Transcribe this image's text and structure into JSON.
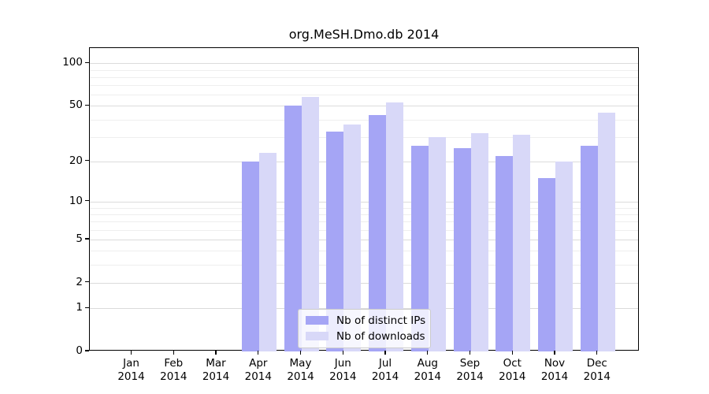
{
  "chart_data": {
    "type": "bar",
    "title": "org.MeSH.Dmo.db 2014",
    "categories": [
      "Jan 2014",
      "Feb 2014",
      "Mar 2014",
      "Apr 2014",
      "May 2014",
      "Jun 2014",
      "Jul 2014",
      "Aug 2014",
      "Sep 2014",
      "Oct 2014",
      "Nov 2014",
      "Dec 2014"
    ],
    "series": [
      {
        "name": "Nb of distinct IPs",
        "color": "#a5a5f5",
        "values": [
          0,
          0,
          0,
          20,
          50,
          33,
          43,
          26,
          25,
          22,
          15,
          26
        ]
      },
      {
        "name": "Nb of downloads",
        "color": "#d8d8f8",
        "values": [
          0,
          0,
          0,
          23,
          58,
          37,
          53,
          30,
          32,
          31,
          20,
          45
        ]
      }
    ],
    "xlabel": "",
    "ylabel": "",
    "yscale": "log1p",
    "yticks": [
      0,
      1,
      2,
      5,
      10,
      20,
      50,
      100
    ],
    "ylim": [
      0,
      128
    ],
    "grid": true,
    "legend_position": "lower center",
    "colors": {
      "axis": "#000000",
      "grid_major": "#dbdbdb",
      "grid_minor": "#eeeeee",
      "background": "#ffffff"
    }
  }
}
